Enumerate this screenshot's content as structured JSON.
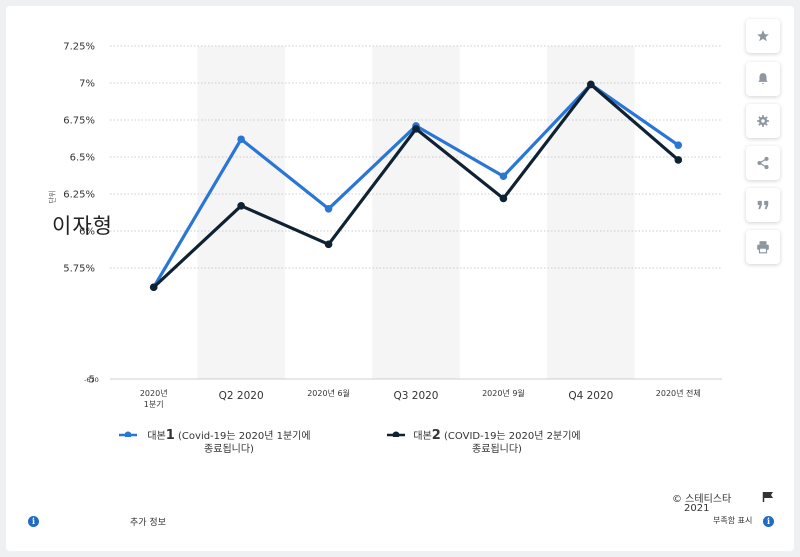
{
  "chart_data": {
    "type": "line",
    "categories": [
      "2020년\n1분기",
      "Q2 2020",
      "2020년 6월",
      "Q3 2020",
      "2020년 9월",
      "Q4 2020",
      "2020년 전체"
    ],
    "series": [
      {
        "name": "대본 1 (Covid-19는 2020년 1분기에 종료됩니다)",
        "color": "#2a76d6",
        "values": [
          5.62,
          6.62,
          6.15,
          6.71,
          6.37,
          6.99,
          6.58
        ]
      },
      {
        "name": "대본 2 (COVID-19는 2020년 2분기에 종료됩니다)",
        "color": "#0f2233",
        "values": [
          5.62,
          6.17,
          5.91,
          6.69,
          6.22,
          6.99,
          6.48
        ]
      }
    ],
    "ylim": [
      5,
      7.25
    ],
    "yticks": [
      5,
      5.25,
      5.5,
      5.75,
      6,
      6.25,
      6.5,
      6.75,
      7,
      7.25
    ],
    "ytick_labels": [
      "5",
      "",
      "",
      "5.75%",
      "6%",
      "6.25%",
      "6.5%",
      "6.75%",
      "7%",
      "7.25%"
    ],
    "ylabel": "이자형",
    "ylabel_small": "단위",
    "axis_extra_label": "-670",
    "grid": true,
    "legend_position": "bottom"
  },
  "legend": {
    "s1_prefix": "대본",
    "s1_num": "1",
    "s1_line1": "(Covid-19는 2020년 1분기에",
    "s1_line2": "종료됩니다)",
    "s2_prefix": "대본",
    "s2_num": "2",
    "s2_line1": "(COVID-19는 2020년 2분기에",
    "s2_line2": "종료됩니다)"
  },
  "footer": {
    "more_info": "추가 정보",
    "copyright_line1": "© 스테티스타",
    "copyright_line2": "2021",
    "report_label": "부족함 표시"
  },
  "sidebar_icons": [
    "star-icon",
    "bell-icon",
    "gear-icon",
    "share-icon",
    "quote-icon",
    "print-icon"
  ]
}
